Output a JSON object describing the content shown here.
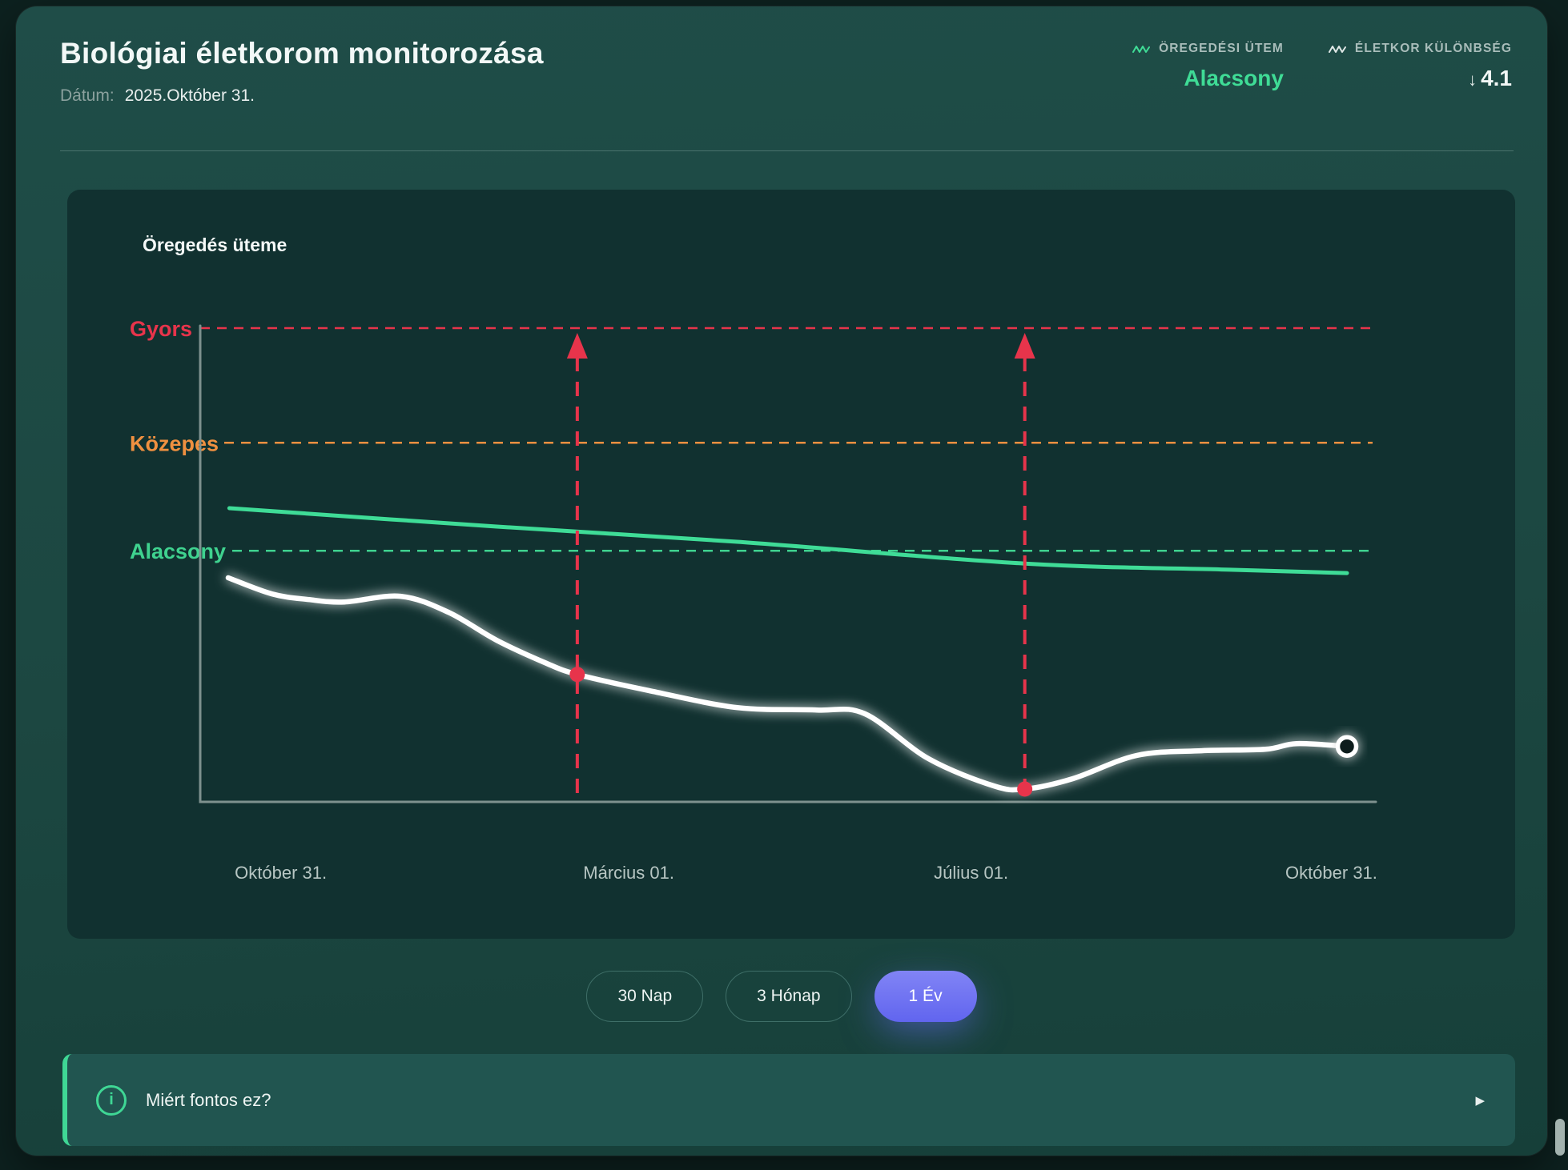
{
  "header": {
    "title": "Biológiai életkorom monitorozása",
    "date_label": "Dátum:",
    "date_value": "2025.Október 31.",
    "stats": [
      {
        "icon": "wave-icon",
        "label": "ÖREGEDÉSI ÜTEM",
        "value": "Alacsony",
        "value_color": "#3fdc96"
      },
      {
        "icon": "wave-icon",
        "label": "ÉLETKOR KÜLÖNBSÉG",
        "arrow": "↓",
        "value": "4.1",
        "value_color": "#f2f7f6"
      }
    ]
  },
  "chart": {
    "title": "Öregedés üteme"
  },
  "chart_data": {
    "type": "line",
    "title": "Öregedés üteme",
    "y_axis": {
      "type": "qualitative",
      "bands_top_to_bottom": [
        "Gyors",
        "Közepes",
        "Alacsony"
      ],
      "grid": "dashed-threshold-lines"
    },
    "thresholds": [
      {
        "label": "Gyors",
        "color": "#e7344b",
        "y": 1.0
      },
      {
        "label": "Közepes",
        "color": "#ef9040",
        "y": 0.758
      },
      {
        "label": "Alacsony",
        "color": "#3fd28f",
        "y": 0.53
      }
    ],
    "x_ticks": [
      {
        "label": "Október 31.",
        "x": 0.047
      },
      {
        "label": "Március 01.",
        "x": 0.358
      },
      {
        "label": "Július 01.",
        "x": 0.664
      },
      {
        "label": "Október 31.",
        "x": 0.986
      }
    ],
    "series": [
      {
        "name": "trend-reference-line",
        "color": "#3fdc97",
        "style": "solid",
        "points": [
          [
            0.001,
            0.62
          ],
          [
            0.24,
            0.581
          ],
          [
            0.455,
            0.549
          ],
          [
            0.712,
            0.503
          ],
          [
            0.895,
            0.49
          ],
          [
            1.0,
            0.483
          ]
        ]
      },
      {
        "name": "aging-rate-line",
        "color": "#ffffff",
        "style": "glow",
        "points": [
          [
            0.0,
            0.473
          ],
          [
            0.039,
            0.439
          ],
          [
            0.072,
            0.427
          ],
          [
            0.104,
            0.422
          ],
          [
            0.154,
            0.434
          ],
          [
            0.197,
            0.4
          ],
          [
            0.24,
            0.341
          ],
          [
            0.283,
            0.294
          ],
          [
            0.312,
            0.269
          ],
          [
            0.376,
            0.235
          ],
          [
            0.455,
            0.199
          ],
          [
            0.526,
            0.194
          ],
          [
            0.569,
            0.186
          ],
          [
            0.626,
            0.091
          ],
          [
            0.684,
            0.034
          ],
          [
            0.712,
            0.027
          ],
          [
            0.755,
            0.049
          ],
          [
            0.812,
            0.098
          ],
          [
            0.87,
            0.108
          ],
          [
            0.927,
            0.111
          ],
          [
            0.955,
            0.123
          ],
          [
            1.0,
            0.117
          ]
        ]
      }
    ],
    "events": [
      {
        "x": 0.312,
        "y": 0.269,
        "color": "#e7344b",
        "marker": "dot-with-up-arrow"
      },
      {
        "x": 0.712,
        "y": 0.027,
        "color": "#e7344b",
        "marker": "dot-with-up-arrow"
      }
    ],
    "current_point": {
      "x": 1.0,
      "y": 0.117,
      "marker": "open-circle"
    },
    "legend": "none"
  },
  "controls": {
    "ranges": [
      {
        "label": "30 Nap",
        "selected": false
      },
      {
        "label": "3 Hónap",
        "selected": false
      },
      {
        "label": "1 Év",
        "selected": true
      }
    ],
    "selected_bg": "#6b6ff2"
  },
  "info_bar": {
    "icon": "info-circle-icon",
    "icon_glyph": "i",
    "text": "Miért fontos ez?",
    "chevron": "▶"
  },
  "colors": {
    "page_bg": "#0d211f",
    "card_bg": "#1c4741",
    "panel_bg": "#113130",
    "accent_green": "#3fdc96",
    "alert_red": "#e7344b",
    "warn_orange": "#ef9040",
    "selected_indigo": "#6b6ff2"
  }
}
